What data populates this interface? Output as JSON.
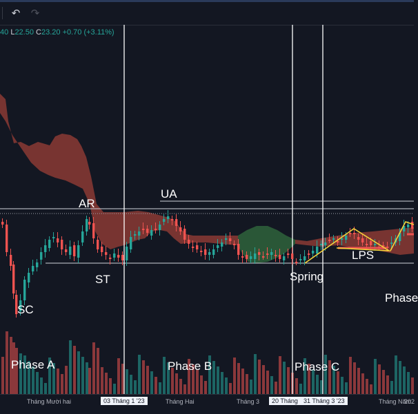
{
  "toolbar": {
    "undo_icon": "undo-arrow-icon",
    "redo_icon": "redo-arrow-icon"
  },
  "ohlc": {
    "open_tail": "40",
    "low_key": "L",
    "low_val": "22.50",
    "close_key": "C",
    "close_val": "23.20",
    "change": "+0.70 (+3.11%)"
  },
  "annotations": {
    "sc": "SC",
    "ar": "AR",
    "st": "ST",
    "ua": "UA",
    "spring": "Spring",
    "lps": "LPS",
    "phase_d": "Phase",
    "phase_a": "Phase A",
    "phase_b": "Phase B",
    "phase_c": "Phase C"
  },
  "xaxis": {
    "m1": "Tháng Mười hai",
    "d1": "03 Tháng 1 '23",
    "m2": "Tháng Hai",
    "m3": "Tháng 3",
    "d2": "20 Tháng",
    "d3": "31 Tháng 3 '23",
    "m5": "Tháng Năm",
    "y": "202"
  },
  "colors": {
    "up": "#26a69a",
    "down": "#ef5350",
    "cloud_bear": "#8b3a34",
    "cloud_bull": "#2e5e3a",
    "wedge": "#f5d33b"
  }
}
